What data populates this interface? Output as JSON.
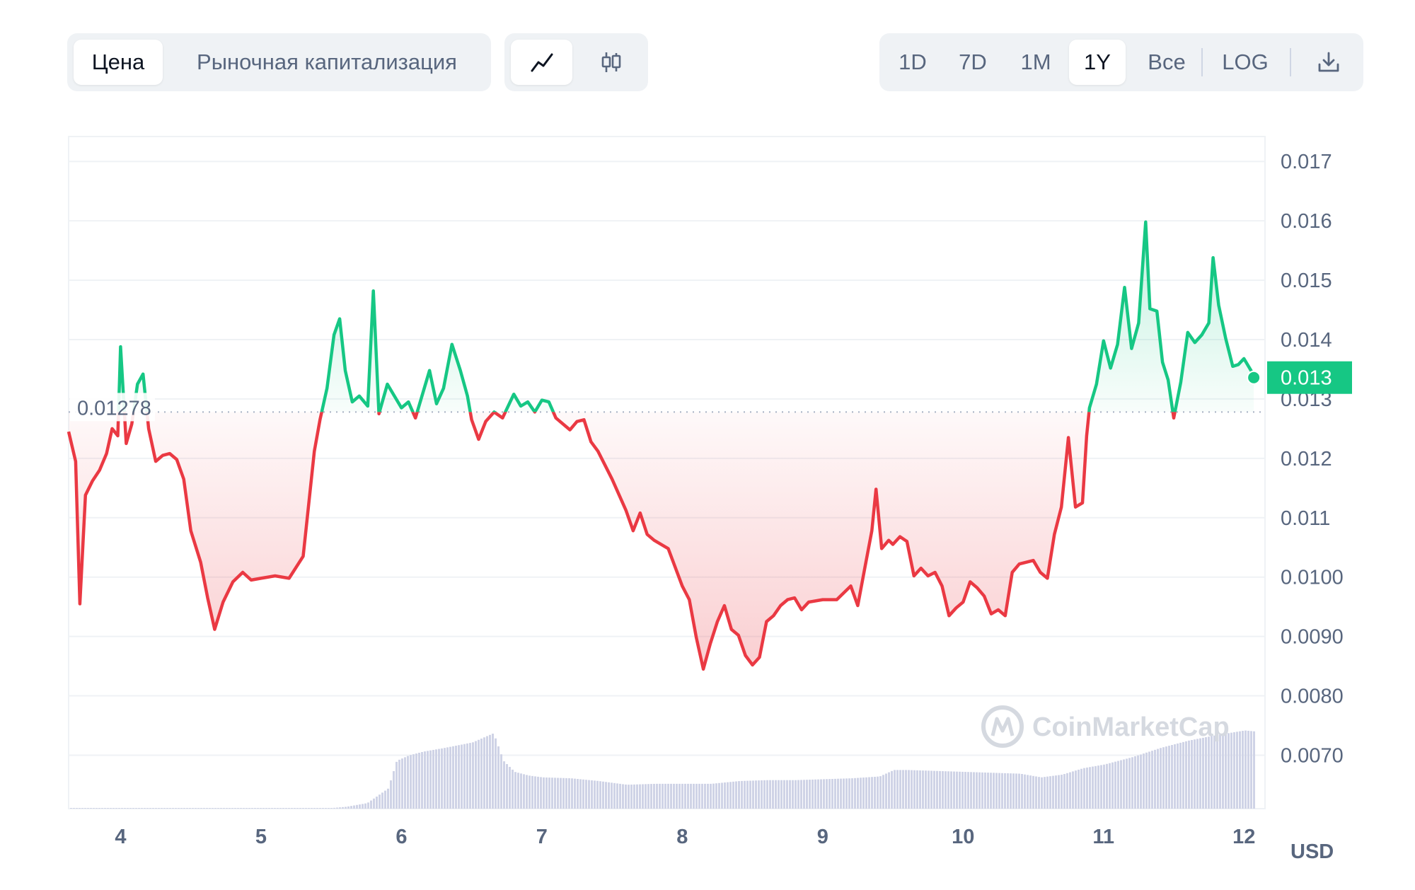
{
  "tabs": {
    "price": "Цена",
    "market_cap": "Рыночная капитализация"
  },
  "chart_type_icons": [
    "line-chart-icon",
    "candlestick-icon"
  ],
  "ranges": [
    "1D",
    "7D",
    "1M",
    "1Y",
    "Все",
    "LOG"
  ],
  "active_range": "1Y",
  "download_icon": "download-icon",
  "watermark": "CoinMarketCap",
  "colors": {
    "up": "#16c784",
    "down": "#ea3943",
    "accent": "#16c784",
    "volume": "#cfd3e6",
    "grid": "#eff2f5",
    "text": "#58667e"
  },
  "chart_data": {
    "type": "area",
    "baseline": 0.01278,
    "baseline_label": "0.01278",
    "current_price_label": "0.013",
    "current_price": 0.01336,
    "currency_label": "USD",
    "ylim": [
      0.0061,
      0.01742
    ],
    "y_ticks": [
      0.017,
      0.016,
      0.015,
      0.014,
      0.013,
      0.012,
      0.011,
      0.01,
      0.009,
      0.008,
      0.007
    ],
    "y_tick_labels": [
      "0.017",
      "0.016",
      "0.015",
      "0.014",
      "0.013",
      "0.012",
      "0.011",
      "0.0100",
      "0.0090",
      "0.0080",
      "0.0070"
    ],
    "x_ticks": [
      4,
      5,
      6,
      7,
      8,
      9,
      10,
      11,
      12
    ],
    "x_tick_labels": [
      "4",
      "5",
      "6",
      "7",
      "8",
      "9",
      "10",
      "11",
      "12"
    ],
    "xlim": [
      3.63,
      12.15
    ],
    "series": [
      {
        "x": [
          3.63,
          3.68,
          3.71,
          3.75,
          3.8,
          3.85,
          3.9,
          3.94,
          3.98,
          4.0,
          4.04,
          4.08,
          4.12,
          4.16,
          4.2,
          4.25,
          4.3,
          4.35,
          4.4,
          4.45,
          4.5,
          4.57,
          4.62,
          4.67,
          4.73,
          4.8,
          4.87,
          4.93,
          5.0,
          5.1,
          5.2,
          5.3,
          5.38,
          5.42,
          5.47,
          5.52,
          5.56,
          5.6,
          5.65,
          5.7,
          5.76,
          5.8,
          5.84,
          5.9,
          6.0,
          6.05,
          6.1,
          6.2,
          6.25,
          6.3,
          6.36,
          6.42,
          6.47,
          6.5,
          6.55,
          6.6,
          6.66,
          6.72,
          6.8,
          6.85,
          6.9,
          6.95,
          7.0,
          7.05,
          7.1,
          7.2,
          7.25,
          7.3,
          7.35,
          7.4,
          7.5,
          7.6,
          7.65,
          7.7,
          7.75,
          7.8,
          7.9,
          8.0,
          8.05,
          8.1,
          8.15,
          8.2,
          8.25,
          8.3,
          8.35,
          8.4,
          8.45,
          8.5,
          8.55,
          8.6,
          8.65,
          8.7,
          8.75,
          8.8,
          8.85,
          8.9,
          9.0,
          9.1,
          9.2,
          9.25,
          9.3,
          9.35,
          9.38,
          9.42,
          9.47,
          9.5,
          9.55,
          9.6,
          9.65,
          9.7,
          9.75,
          9.8,
          9.85,
          9.9,
          9.95,
          10.0,
          10.05,
          10.1,
          10.15,
          10.2,
          10.25,
          10.3,
          10.35,
          10.4,
          10.45,
          10.5,
          10.55,
          10.6,
          10.65,
          10.7,
          10.75,
          10.8,
          10.85,
          10.88,
          10.9,
          10.95,
          11.0,
          11.05,
          11.1,
          11.15,
          11.2,
          11.25,
          11.3,
          11.33,
          11.38,
          11.42,
          11.46,
          11.5,
          11.55,
          11.6,
          11.65,
          11.7,
          11.75,
          11.78,
          11.82,
          11.87,
          11.92,
          11.96,
          12.0,
          12.05,
          12.07
        ],
        "y": [
          0.01245,
          0.01195,
          0.00955,
          0.01138,
          0.01162,
          0.0118,
          0.01208,
          0.0125,
          0.01238,
          0.01388,
          0.01225,
          0.01258,
          0.01325,
          0.01342,
          0.0125,
          0.01195,
          0.01205,
          0.01208,
          0.01198,
          0.01165,
          0.01078,
          0.01025,
          0.00965,
          0.00912,
          0.00958,
          0.00992,
          0.01008,
          0.00995,
          0.00998,
          0.01002,
          0.00998,
          0.01035,
          0.01212,
          0.01265,
          0.01318,
          0.01408,
          0.01435,
          0.01348,
          0.01295,
          0.01305,
          0.01288,
          0.01482,
          0.01275,
          0.01325,
          0.01285,
          0.01295,
          0.01268,
          0.01348,
          0.01292,
          0.01318,
          0.01392,
          0.01348,
          0.01305,
          0.01265,
          0.01232,
          0.01262,
          0.01278,
          0.01268,
          0.01308,
          0.01288,
          0.01295,
          0.01278,
          0.01298,
          0.01295,
          0.01268,
          0.01248,
          0.01262,
          0.01265,
          0.01228,
          0.01212,
          0.01165,
          0.01112,
          0.01078,
          0.01108,
          0.01072,
          0.01062,
          0.01048,
          0.00985,
          0.00962,
          0.00898,
          0.00845,
          0.00888,
          0.00925,
          0.00952,
          0.00912,
          0.00902,
          0.00868,
          0.00852,
          0.00865,
          0.00925,
          0.00935,
          0.00952,
          0.00962,
          0.00965,
          0.00945,
          0.00958,
          0.00962,
          0.00962,
          0.00985,
          0.00952,
          0.01015,
          0.01078,
          0.01148,
          0.01048,
          0.01062,
          0.01055,
          0.01068,
          0.0106,
          0.01002,
          0.01015,
          0.01002,
          0.01008,
          0.00985,
          0.00935,
          0.00948,
          0.00958,
          0.00992,
          0.00982,
          0.00968,
          0.00938,
          0.00945,
          0.00935,
          0.01008,
          0.01022,
          0.01025,
          0.01028,
          0.01008,
          0.00998,
          0.01072,
          0.01118,
          0.01235,
          0.01118,
          0.01125,
          0.01238,
          0.01285,
          0.01325,
          0.01398,
          0.01352,
          0.01392,
          0.01488,
          0.01385,
          0.01428,
          0.01598,
          0.01452,
          0.01448,
          0.01362,
          0.01332,
          0.01268,
          0.01328,
          0.01412,
          0.01395,
          0.01408,
          0.01428,
          0.01538,
          0.01458,
          0.01402,
          0.01355,
          0.01358,
          0.01368,
          0.01348,
          0.01336
        ]
      }
    ],
    "volume": {
      "x": [
        3.63,
        5.45,
        5.6,
        5.75,
        5.9,
        5.96,
        6.05,
        6.15,
        6.3,
        6.5,
        6.65,
        6.72,
        6.8,
        6.9,
        7.0,
        7.2,
        7.4,
        7.6,
        7.8,
        8.0,
        8.2,
        8.4,
        8.6,
        8.8,
        9.0,
        9.2,
        9.4,
        9.5,
        9.6,
        9.8,
        10.0,
        10.2,
        10.4,
        10.55,
        10.7,
        10.85,
        11.0,
        11.2,
        11.4,
        11.6,
        11.8,
        12.0,
        12.07
      ],
      "y": [
        0.0,
        0.0,
        0.02,
        0.06,
        0.22,
        0.52,
        0.58,
        0.62,
        0.66,
        0.72,
        0.82,
        0.52,
        0.4,
        0.36,
        0.34,
        0.33,
        0.3,
        0.26,
        0.27,
        0.27,
        0.27,
        0.3,
        0.31,
        0.31,
        0.32,
        0.33,
        0.35,
        0.42,
        0.42,
        0.41,
        0.4,
        0.39,
        0.38,
        0.34,
        0.37,
        0.44,
        0.48,
        0.56,
        0.66,
        0.74,
        0.8,
        0.85,
        0.84
      ]
    }
  }
}
